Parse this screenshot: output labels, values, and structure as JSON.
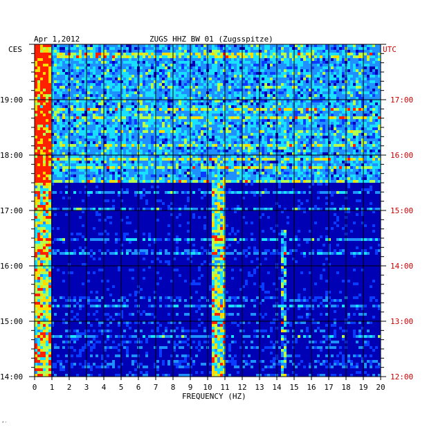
{
  "header": {
    "date": "Apr 1,2012",
    "station": "ZUGS HHZ BW 01 (Zugsspitze)"
  },
  "chart_data": {
    "type": "heatmap",
    "title": "ZUGS HHZ BW 01 (Zugsspitze)",
    "date": "Apr 1,2012",
    "xlabel": "FREQUENCY (HZ)",
    "x_ticks": [
      "0",
      "1",
      "2",
      "3",
      "4",
      "5",
      "6",
      "7",
      "8",
      "9",
      "10",
      "11",
      "12",
      "13",
      "14",
      "15",
      "16",
      "17",
      "18",
      "19",
      "20"
    ],
    "xlim": [
      0,
      20
    ],
    "left_axis": {
      "label": "CES",
      "ticks": [
        "19:00",
        "18:00",
        "17:00",
        "16:00",
        "15:00",
        "14:00"
      ]
    },
    "right_axis": {
      "label": "UTC",
      "ticks": [
        "17:00",
        "16:00",
        "15:00",
        "14:00",
        "13:00",
        "12:00"
      ]
    },
    "time_range_ces": [
      "14:00",
      "20:00"
    ],
    "colormap": [
      "#00007a",
      "#0000d8",
      "#0a3cff",
      "#1e90ff",
      "#19e0ff",
      "#b4ff50",
      "#ffdc00",
      "#ff2000"
    ],
    "grid": true,
    "features": [
      {
        "name": "continuous low-frequency noise",
        "freq_range_hz": [
          0,
          1
        ]
      },
      {
        "name": "persistent spectral line",
        "freq_range_hz": [
          10.2,
          11
        ]
      },
      {
        "name": "persistent spectral line",
        "freq_range_hz": [
          14.2,
          14.6
        ]
      },
      {
        "name": "broadband noise",
        "time_range_ces": [
          "17:30",
          "20:00"
        ]
      }
    ]
  },
  "corner_mark": "‘′"
}
